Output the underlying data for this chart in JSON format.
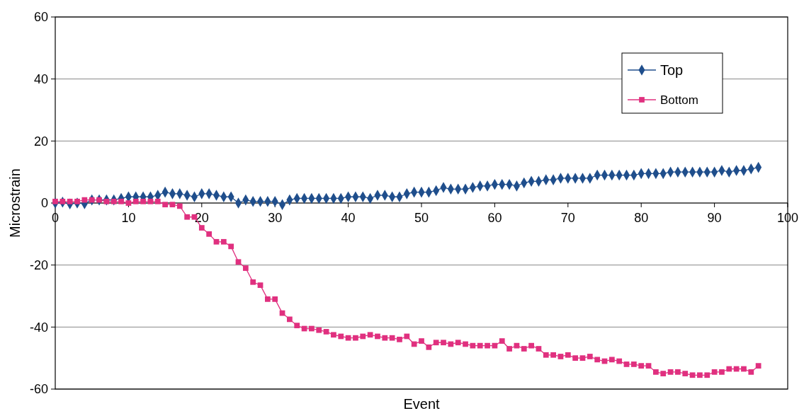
{
  "chart_data": {
    "type": "line",
    "xlabel": "Event",
    "ylabel": "Microstrain",
    "x": [
      0,
      1,
      2,
      3,
      4,
      5,
      6,
      7,
      8,
      9,
      10,
      11,
      12,
      13,
      14,
      15,
      16,
      17,
      18,
      19,
      20,
      21,
      22,
      23,
      24,
      25,
      26,
      27,
      28,
      29,
      30,
      31,
      32,
      33,
      34,
      35,
      36,
      37,
      38,
      39,
      40,
      41,
      42,
      43,
      44,
      45,
      46,
      47,
      48,
      49,
      50,
      51,
      52,
      53,
      54,
      55,
      56,
      57,
      58,
      59,
      60,
      61,
      62,
      63,
      64,
      65,
      66,
      67,
      68,
      69,
      70,
      71,
      72,
      73,
      74,
      75,
      76,
      77,
      78,
      79,
      80,
      81,
      82,
      83,
      84,
      85,
      86,
      87,
      88,
      89,
      90,
      91,
      92,
      93,
      94,
      95,
      96
    ],
    "series": [
      {
        "name": "Top",
        "color": "#1f4e8c",
        "marker": "diamond",
        "values": [
          0,
          0.3,
          -0.3,
          0,
          -0.2,
          1,
          1,
          1,
          1,
          1.5,
          2,
          2,
          2,
          2,
          2.5,
          3.5,
          3,
          3,
          2.5,
          2,
          3,
          3,
          2.5,
          2,
          2,
          0,
          1,
          0.5,
          0.5,
          0.5,
          0.5,
          -0.5,
          1,
          1.5,
          1.5,
          1.5,
          1.5,
          1.5,
          1.5,
          1.5,
          2,
          2,
          2,
          1.5,
          2.5,
          2.5,
          2,
          2,
          3,
          3.5,
          3.5,
          3.5,
          4,
          5,
          4.5,
          4.5,
          4.5,
          5,
          5.5,
          5.5,
          6,
          6,
          6,
          5.5,
          6.5,
          7,
          7,
          7.5,
          7.5,
          8,
          8,
          8,
          8,
          8,
          9,
          9,
          9,
          9,
          9,
          9,
          9.5,
          9.5,
          9.5,
          9.5,
          10,
          10,
          10,
          10,
          10,
          10,
          10,
          10.5,
          10,
          10.5,
          10.5,
          11,
          11.5
        ]
      },
      {
        "name": "Bottom",
        "color": "#e0307f",
        "marker": "square",
        "values": [
          0.5,
          0.5,
          0.5,
          0.5,
          1,
          1,
          1,
          0.5,
          0.5,
          0.5,
          0,
          0.5,
          0.5,
          0.5,
          0.5,
          -0.5,
          -0.5,
          -1,
          -4.5,
          -4.5,
          -8,
          -10,
          -12.5,
          -12.5,
          -14,
          -19,
          -21,
          -25.5,
          -26.5,
          -31,
          -31,
          -35.5,
          -37.5,
          -39.5,
          -40.5,
          -40.5,
          -41,
          -41.5,
          -42.5,
          -43,
          -43.5,
          -43.5,
          -43,
          -42.5,
          -43,
          -43.5,
          -43.5,
          -44,
          -43,
          -45.5,
          -44.5,
          -46.5,
          -45,
          -45,
          -45.5,
          -45,
          -45.5,
          -46,
          -46,
          -46,
          -46,
          -44.5,
          -47,
          -46,
          -47,
          -46,
          -47,
          -49,
          -49,
          -49.5,
          -49,
          -50,
          -50,
          -49.5,
          -50.5,
          -51,
          -50.5,
          -51,
          -52,
          -52,
          -52.5,
          -52.5,
          -54.5,
          -55,
          -54.5,
          -54.5,
          -55,
          -55.5,
          -55.5,
          -55.5,
          -54.5,
          -54.5,
          -53.5,
          -53.5,
          -53.5,
          -54.5,
          -52.5
        ]
      }
    ],
    "xlim": [
      0,
      100
    ],
    "xticks": [
      0,
      10,
      20,
      30,
      40,
      50,
      60,
      70,
      80,
      90,
      100
    ],
    "ylim": [
      -60,
      60
    ],
    "yticks": [
      -60,
      -40,
      -20,
      0,
      20,
      40,
      60
    ],
    "grid": "y",
    "legend": "top right"
  }
}
